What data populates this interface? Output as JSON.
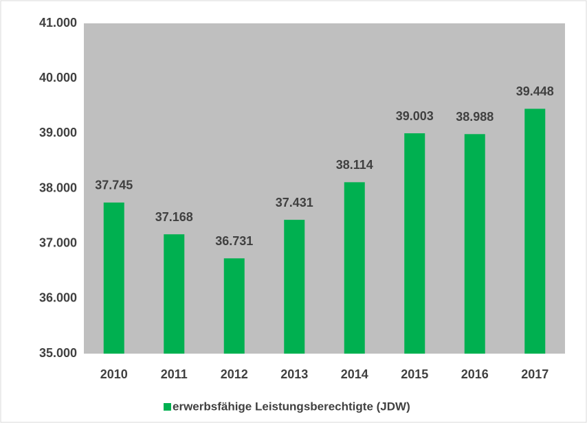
{
  "chart_data": {
    "type": "bar",
    "categories": [
      "2010",
      "2011",
      "2012",
      "2013",
      "2014",
      "2015",
      "2016",
      "2017"
    ],
    "series": [
      {
        "name": "erwerbsfähige Leistungsberechtigte (JDW)",
        "color": "#00b050",
        "values": [
          37745,
          37168,
          36731,
          37431,
          38114,
          39003,
          38988,
          39448
        ],
        "value_labels": [
          "37.745",
          "37.168",
          "36.731",
          "37.431",
          "38.114",
          "39.003",
          "38.988",
          "39.448"
        ]
      }
    ],
    "ylim": [
      35000,
      41000
    ],
    "yticks": [
      {
        "value": 35000,
        "label": "35.000"
      },
      {
        "value": 36000,
        "label": "36.000"
      },
      {
        "value": 37000,
        "label": "37.000"
      },
      {
        "value": 38000,
        "label": "38.000"
      },
      {
        "value": 39000,
        "label": "39.000"
      },
      {
        "value": 40000,
        "label": "40.000"
      },
      {
        "value": 41000,
        "label": "41.000"
      }
    ],
    "plot_background": "#bfbfbf",
    "legend": "bottom"
  }
}
